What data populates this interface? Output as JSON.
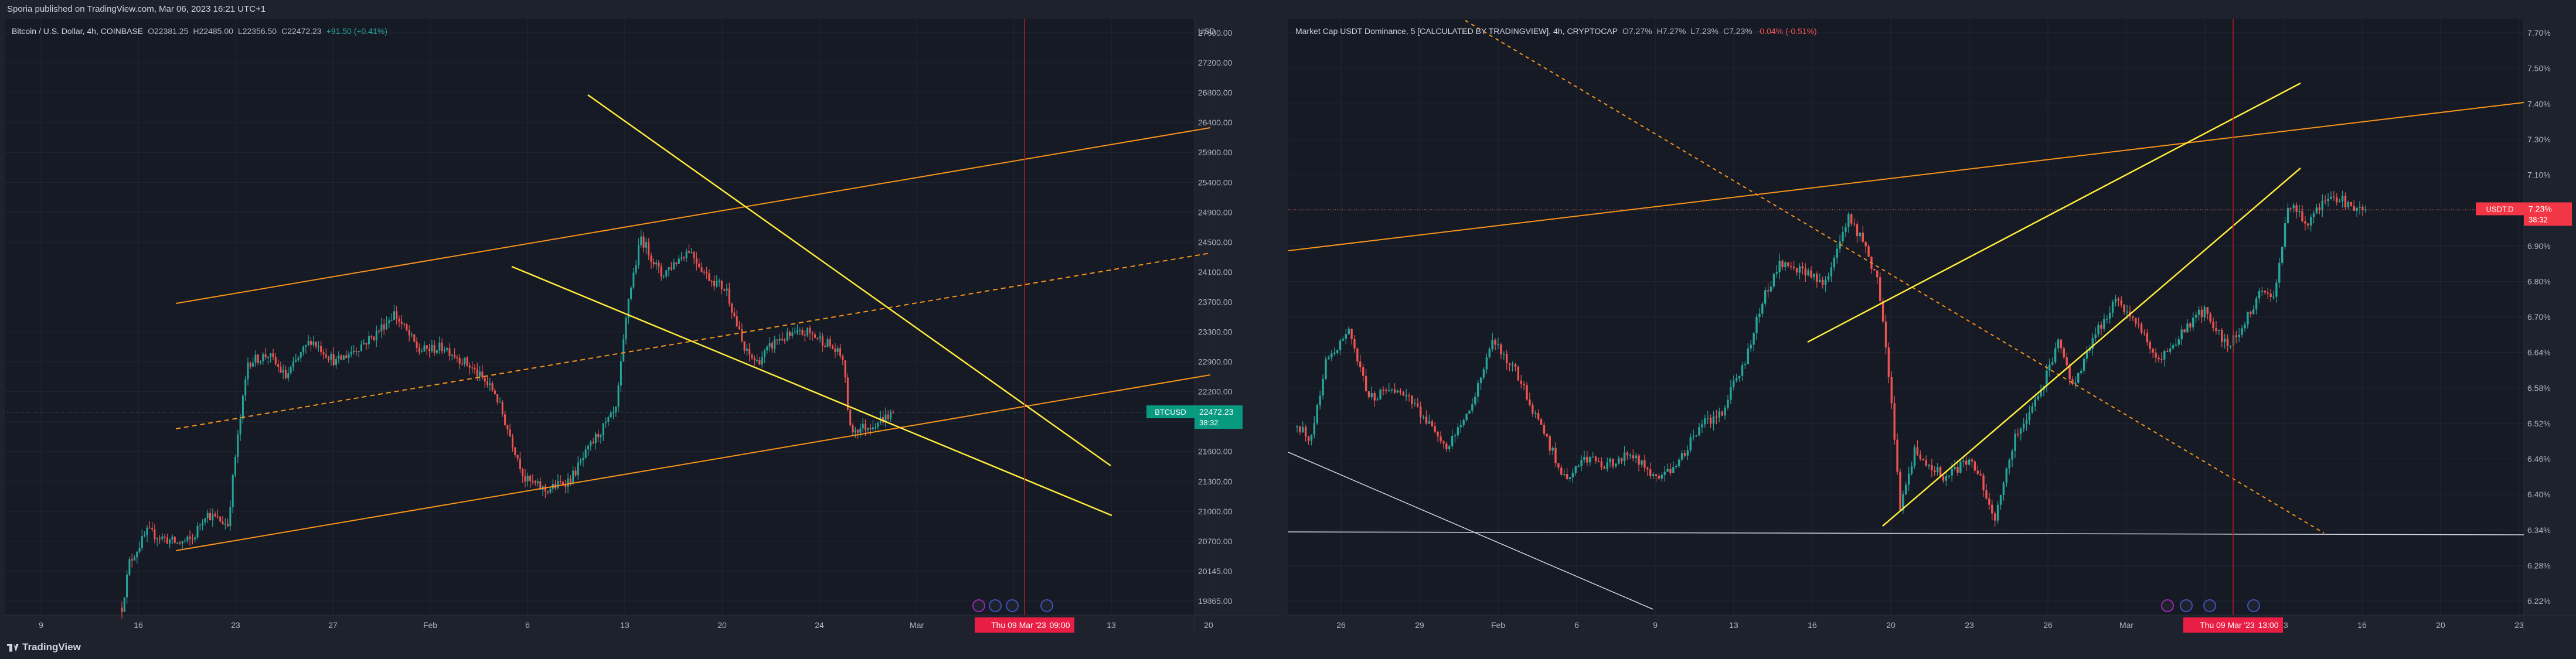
{
  "header": {
    "published": "Sporia published on TradingView.com, Mar 06, 2023 16:21 UTC+1"
  },
  "footer": {
    "brand": "TradingView"
  },
  "colors": {
    "up": "#26a69a",
    "down": "#ef5350",
    "orange": "#f7931a",
    "yellow": "#ffeb3b",
    "white": "#d1d4dc",
    "crosshair": "#b71c1c"
  },
  "chart_data": [
    {
      "type": "candlestick",
      "legend": {
        "symbol": "Bitcoin / U.S. Dollar, 4h, COINBASE",
        "o": "O22381.25",
        "h": "H22485.00",
        "l": "L22356.50",
        "c": "C22472.23",
        "chg": "+91.50 (+0.41%)"
      },
      "currency": "USD",
      "y_ticks": [
        "27600.00",
        "27200.00",
        "26800.00",
        "26400.00",
        "25900.00",
        "25400.00",
        "24900.00",
        "24500.00",
        "24100.00",
        "23700.00",
        "23300.00",
        "22900.00",
        "22200.00",
        "21900.00",
        "21600.00",
        "21300.00",
        "21000.00",
        "20700.00",
        "20145.00",
        "19865.00"
      ],
      "x_ticks": [
        "9",
        "16",
        "23",
        "27",
        "Feb",
        "6",
        "13",
        "20",
        "24",
        "Mar",
        "6",
        "13",
        "20"
      ],
      "last_price": {
        "symbol": "BTCUSD",
        "value": "22472.23",
        "countdown": "38:32"
      },
      "crosshair_date": "Thu 09 Mar '23",
      "crosshair_time": "09:00",
      "ylim": [
        19800,
        27700
      ],
      "anchors": [
        [
          0,
          19900
        ],
        [
          3,
          20500
        ],
        [
          10,
          20900
        ],
        [
          22,
          20750
        ],
        [
          28,
          20800
        ],
        [
          33,
          21150
        ],
        [
          42,
          21000
        ],
        [
          45,
          21900
        ],
        [
          50,
          23150
        ],
        [
          58,
          23250
        ],
        [
          65,
          22950
        ],
        [
          75,
          23450
        ],
        [
          85,
          23150
        ],
        [
          100,
          23500
        ],
        [
          108,
          23800
        ],
        [
          118,
          23300
        ],
        [
          128,
          23350
        ],
        [
          138,
          23100
        ],
        [
          148,
          22750
        ],
        [
          160,
          21600
        ],
        [
          168,
          21450
        ],
        [
          178,
          21600
        ],
        [
          188,
          22150
        ],
        [
          196,
          22500
        ],
        [
          201,
          24000
        ],
        [
          206,
          24800
        ],
        [
          214,
          24300
        ],
        [
          225,
          24650
        ],
        [
          232,
          24300
        ],
        [
          240,
          24100
        ],
        [
          247,
          23300
        ],
        [
          252,
          23150
        ],
        [
          260,
          23450
        ],
        [
          272,
          23550
        ],
        [
          280,
          23400
        ],
        [
          286,
          23200
        ],
        [
          289,
          22250
        ],
        [
          296,
          22300
        ],
        [
          306,
          22470
        ]
      ]
    },
    {
      "type": "candlestick",
      "legend": {
        "symbol": "Market Cap USDT Dominance, 5 [CALCULATED BY TRADINGVIEW], 4h, CRYPTOCAP",
        "o": "O7.27%",
        "h": "H7.27%",
        "l": "L7.23%",
        "c": "C7.23%",
        "chg": "-0.04% (-0.51%)"
      },
      "y_ticks": [
        "7.70%",
        "7.50%",
        "7.40%",
        "7.30%",
        "7.10%",
        "7.00%",
        "6.90%",
        "6.80%",
        "6.70%",
        "6.64%",
        "6.58%",
        "6.52%",
        "6.46%",
        "6.40%",
        "6.34%",
        "6.28%",
        "6.22%"
      ],
      "x_ticks": [
        "26",
        "29",
        "Feb",
        "6",
        "9",
        "13",
        "16",
        "20",
        "23",
        "26",
        "Mar",
        "6",
        "13",
        "16",
        "20",
        "23"
      ],
      "last_price": {
        "symbol": "USDT.D",
        "value": "7.23%",
        "countdown": "38:32"
      },
      "crosshair_date": "Thu 09 Mar '23",
      "crosshair_time": "13:00",
      "ylim": [
        6.2,
        7.72
      ],
      "anchors": [
        [
          0,
          6.68
        ],
        [
          5,
          6.65
        ],
        [
          10,
          6.85
        ],
        [
          18,
          6.92
        ],
        [
          25,
          6.75
        ],
        [
          35,
          6.78
        ],
        [
          45,
          6.7
        ],
        [
          52,
          6.62
        ],
        [
          60,
          6.72
        ],
        [
          68,
          6.9
        ],
        [
          76,
          6.82
        ],
        [
          85,
          6.68
        ],
        [
          93,
          6.55
        ],
        [
          100,
          6.6
        ],
        [
          108,
          6.58
        ],
        [
          116,
          6.62
        ],
        [
          124,
          6.55
        ],
        [
          132,
          6.58
        ],
        [
          140,
          6.68
        ],
        [
          148,
          6.72
        ],
        [
          156,
          6.85
        ],
        [
          162,
          7.0
        ],
        [
          168,
          7.1
        ],
        [
          176,
          7.08
        ],
        [
          184,
          7.05
        ],
        [
          192,
          7.22
        ],
        [
          197,
          7.15
        ],
        [
          202,
          7.05
        ],
        [
          206,
          6.82
        ],
        [
          210,
          6.48
        ],
        [
          215,
          6.62
        ],
        [
          225,
          6.55
        ],
        [
          235,
          6.6
        ],
        [
          243,
          6.45
        ],
        [
          250,
          6.65
        ],
        [
          258,
          6.75
        ],
        [
          265,
          6.9
        ],
        [
          270,
          6.78
        ],
        [
          278,
          6.92
        ],
        [
          285,
          7.0
        ],
        [
          292,
          6.95
        ],
        [
          300,
          6.85
        ],
        [
          308,
          6.92
        ],
        [
          316,
          6.98
        ],
        [
          324,
          6.88
        ],
        [
          330,
          6.95
        ],
        [
          335,
          7.02
        ],
        [
          340,
          7.0
        ],
        [
          345,
          7.25
        ],
        [
          352,
          7.2
        ],
        [
          360,
          7.27
        ],
        [
          368,
          7.24
        ],
        [
          372,
          7.23
        ]
      ]
    }
  ]
}
